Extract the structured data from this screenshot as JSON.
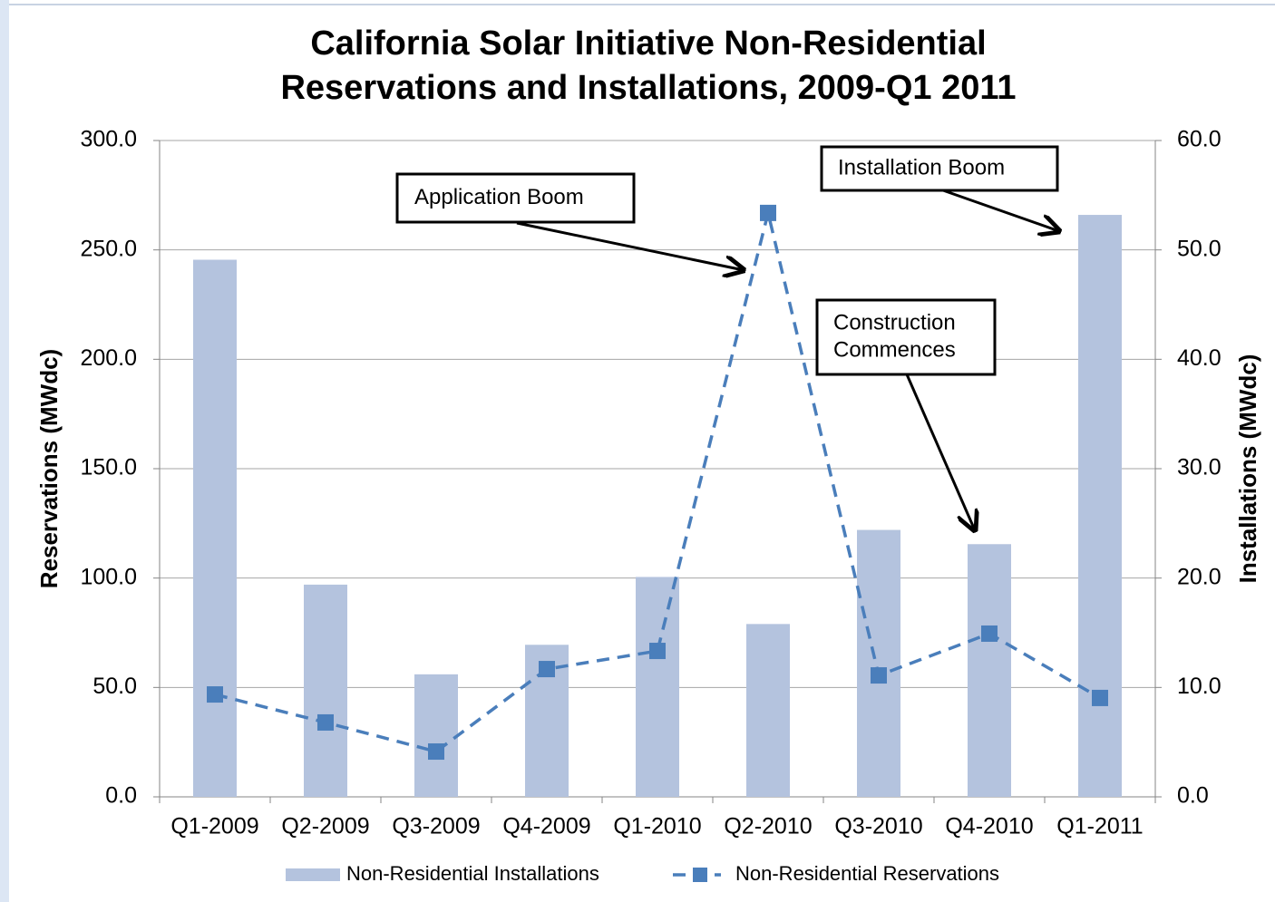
{
  "chart_data": {
    "type": "bar",
    "title": [
      "California Solar Initiative Non-Residential",
      "Reservations and Installations, 2009-Q1 2011"
    ],
    "ylabel": "Reservations (MWdc)",
    "y2label": "Installations (MWdc)",
    "categories": [
      "Q1-2009",
      "Q2-2009",
      "Q3-2009",
      "Q4-2009",
      "Q1-2010",
      "Q2-2010",
      "Q3-2010",
      "Q4-2010",
      "Q1-2011"
    ],
    "series": [
      {
        "name": "Non-Residential Installations",
        "type": "bar",
        "axis": "y2",
        "color": "#b4c3de",
        "values": [
          49.1,
          19.4,
          11.2,
          13.9,
          20.1,
          15.8,
          24.4,
          23.1,
          53.2
        ]
      },
      {
        "name": "Non-Residential Reservations",
        "type": "line",
        "axis": "y",
        "color": "#4a7ebb",
        "values": [
          46.8,
          34.0,
          20.7,
          58.4,
          66.7,
          266.9,
          55.5,
          74.6,
          45.2
        ]
      }
    ],
    "ylim": [
      0,
      300
    ],
    "yticks": [
      {
        "value": 0,
        "label": "0.0"
      },
      {
        "value": 50,
        "label": "50.0"
      },
      {
        "value": 100,
        "label": "100.0"
      },
      {
        "value": 150,
        "label": "150.0"
      },
      {
        "value": 200,
        "label": "200.0"
      },
      {
        "value": 250,
        "label": "250.0"
      },
      {
        "value": 300,
        "label": "300.0"
      }
    ],
    "y2lim": [
      0,
      60
    ],
    "y2ticks": [
      {
        "value": 0,
        "label": "0.0"
      },
      {
        "value": 10,
        "label": "10.0"
      },
      {
        "value": 20,
        "label": "20.0"
      },
      {
        "value": 30,
        "label": "30.0"
      },
      {
        "value": 40,
        "label": "40.0"
      },
      {
        "value": 50,
        "label": "50.0"
      },
      {
        "value": 60,
        "label": "60.0"
      }
    ],
    "grid": true,
    "legend": "bottom",
    "annotations": [
      {
        "lines": [
          "Application  Boom"
        ]
      },
      {
        "lines": [
          "Installation  Boom"
        ]
      },
      {
        "lines": [
          "Construction",
          "Commences"
        ]
      }
    ]
  }
}
